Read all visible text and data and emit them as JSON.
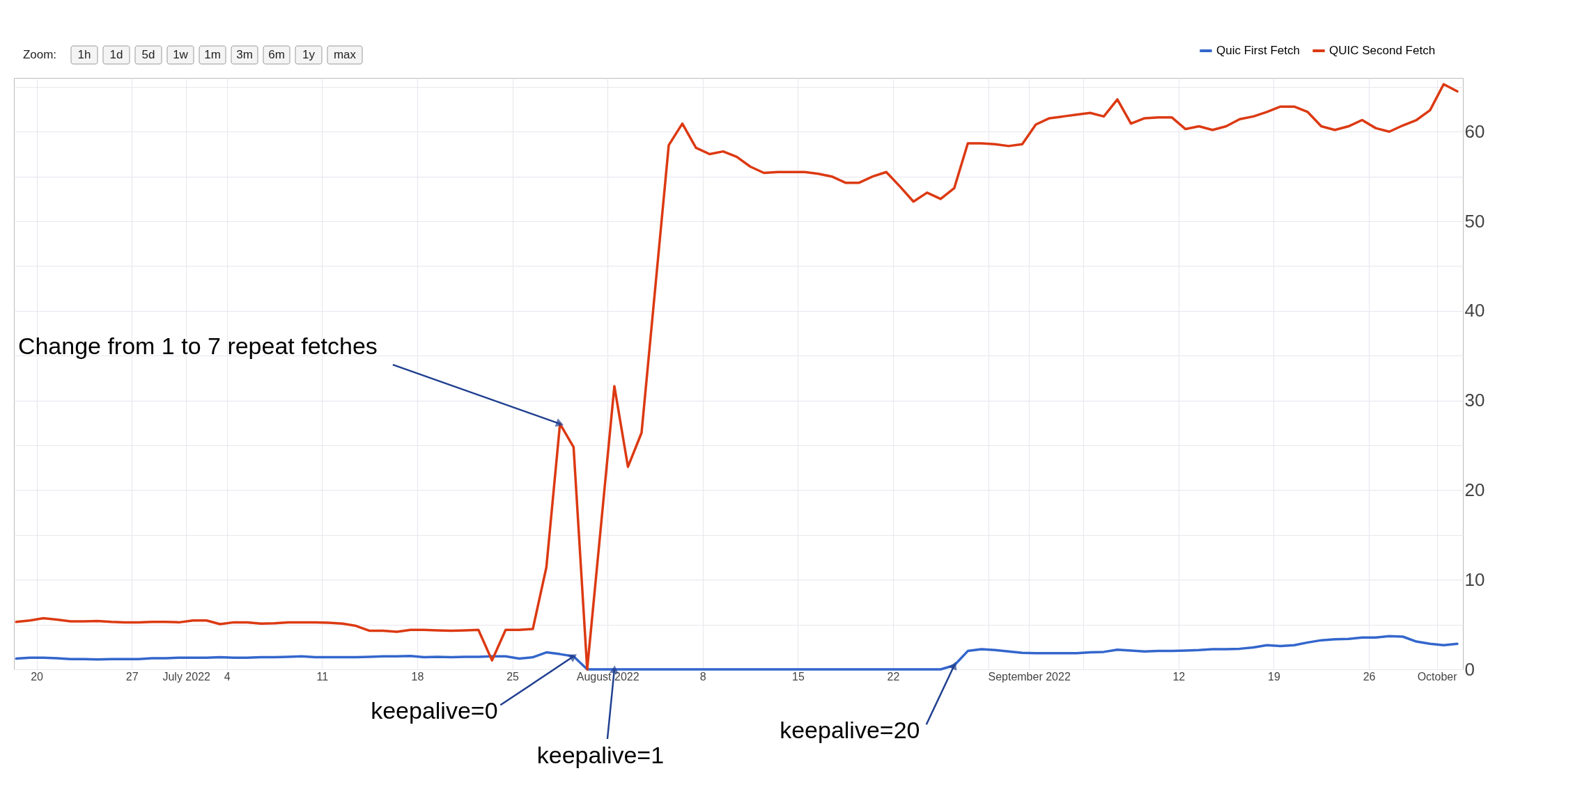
{
  "chart_data": {
    "type": "line",
    "xlim": [
      "2022-06-18T08:00",
      "2022-10-02T22:00"
    ],
    "ylim": [
      0,
      66
    ],
    "xticks": [
      {
        "value": "2022-06-20",
        "label": "20"
      },
      {
        "value": "2022-06-27",
        "label": "27"
      },
      {
        "value": "2022-07-01",
        "label": "July 2022"
      },
      {
        "value": "2022-07-04",
        "label": "4"
      },
      {
        "value": "2022-07-11",
        "label": "11"
      },
      {
        "value": "2022-07-18",
        "label": "18"
      },
      {
        "value": "2022-07-25",
        "label": "25"
      },
      {
        "value": "2022-08-01",
        "label": "August 2022"
      },
      {
        "value": "2022-08-08",
        "label": "8"
      },
      {
        "value": "2022-08-15",
        "label": "15"
      },
      {
        "value": "2022-08-22",
        "label": "22"
      },
      {
        "value": "2022-08-29",
        "label": null
      },
      {
        "value": "2022-09-01",
        "label": "September 2022"
      },
      {
        "value": "2022-09-05",
        "label": null
      },
      {
        "value": "2022-09-12",
        "label": "12"
      },
      {
        "value": "2022-09-19",
        "label": "19"
      },
      {
        "value": "2022-09-26",
        "label": "26"
      },
      {
        "value": "2022-10-01",
        "label": "October"
      }
    ],
    "yticks": [
      0,
      {
        "value": 5,
        "label": null
      },
      10,
      {
        "value": 15,
        "label": null
      },
      20,
      {
        "value": 25,
        "label": null
      },
      30,
      {
        "value": 35,
        "label": null
      },
      40,
      {
        "value": 45,
        "label": null
      },
      50,
      {
        "value": 55,
        "label": null
      },
      60,
      {
        "value": 65,
        "label": null
      }
    ],
    "grid": true,
    "legend": "top right",
    "marker": "none",
    "line_style": "solid",
    "series": [
      {
        "name": "Quic First Fetch",
        "color": "#3366cc",
        "x": [
          "2022-06-18T12:00",
          "2022-06-19T12:00",
          "2022-06-20T12:00",
          "2022-06-21T12:00",
          "2022-06-22T12:00",
          "2022-06-23T12:00",
          "2022-06-24T12:00",
          "2022-06-25T12:00",
          "2022-06-26T12:00",
          "2022-06-27T12:00",
          "2022-06-28T12:00",
          "2022-06-29T12:00",
          "2022-06-30T12:00",
          "2022-07-01T12:00",
          "2022-07-02T12:00",
          "2022-07-03T12:00",
          "2022-07-04T12:00",
          "2022-07-05T12:00",
          "2022-07-06T12:00",
          "2022-07-07T12:00",
          "2022-07-08T12:00",
          "2022-07-09T12:00",
          "2022-07-10T12:00",
          "2022-07-11T12:00",
          "2022-07-12T12:00",
          "2022-07-13T12:00",
          "2022-07-14T12:00",
          "2022-07-15T12:00",
          "2022-07-16T12:00",
          "2022-07-17T12:00",
          "2022-07-18T12:00",
          "2022-07-19T12:00",
          "2022-07-20T12:00",
          "2022-07-21T12:00",
          "2022-07-22T12:00",
          "2022-07-23T12:00",
          "2022-07-24T12:00",
          "2022-07-25T12:00",
          "2022-07-26T12:00",
          "2022-07-27T12:00",
          "2022-07-28T12:00",
          "2022-07-29T12:00",
          "2022-07-30T12:00",
          "2022-08-25T12:00",
          "2022-08-26T12:00",
          "2022-08-27T12:00",
          "2022-08-28T12:00",
          "2022-08-29T12:00",
          "2022-08-30T12:00",
          "2022-08-31T12:00",
          "2022-09-01T12:00",
          "2022-09-02T12:00",
          "2022-09-03T12:00",
          "2022-09-04T12:00",
          "2022-09-05T12:00",
          "2022-09-06T12:00",
          "2022-09-07T12:00",
          "2022-09-08T12:00",
          "2022-09-09T12:00",
          "2022-09-10T12:00",
          "2022-09-11T12:00",
          "2022-09-12T12:00",
          "2022-09-13T12:00",
          "2022-09-14T12:00",
          "2022-09-15T12:00",
          "2022-09-16T12:00",
          "2022-09-17T12:00",
          "2022-09-18T12:00",
          "2022-09-19T12:00",
          "2022-09-20T12:00",
          "2022-09-21T12:00",
          "2022-09-22T12:00",
          "2022-09-23T12:00",
          "2022-09-24T12:00",
          "2022-09-25T12:00",
          "2022-09-26T12:00",
          "2022-09-27T12:00",
          "2022-09-28T12:00",
          "2022-09-29T12:00",
          "2022-09-30T12:00",
          "2022-10-01T12:00",
          "2022-10-02T12:00"
        ],
        "values": [
          1.2,
          1.3,
          1.3,
          1.25,
          1.15,
          1.15,
          1.1,
          1.15,
          1.15,
          1.15,
          1.25,
          1.25,
          1.3,
          1.3,
          1.3,
          1.35,
          1.3,
          1.3,
          1.35,
          1.35,
          1.4,
          1.45,
          1.35,
          1.35,
          1.35,
          1.35,
          1.4,
          1.45,
          1.45,
          1.5,
          1.35,
          1.4,
          1.35,
          1.4,
          1.4,
          1.45,
          1.45,
          1.2,
          1.35,
          1.9,
          1.7,
          1.45,
          0,
          0,
          0.45,
          2.05,
          2.25,
          2.15,
          2.0,
          1.85,
          1.8,
          1.8,
          1.8,
          1.8,
          1.9,
          1.95,
          2.2,
          2.1,
          2.0,
          2.05,
          2.05,
          2.1,
          2.15,
          2.25,
          2.25,
          2.3,
          2.45,
          2.7,
          2.6,
          2.7,
          3.0,
          3.25,
          3.35,
          3.4,
          3.55,
          3.55,
          3.7,
          3.65,
          3.1,
          2.85,
          2.7,
          2.85
        ]
      },
      {
        "name": "QUIC Second Fetch",
        "color": "#dc3912",
        "x": [
          "2022-06-18T12:00",
          "2022-06-19T12:00",
          "2022-06-20T12:00",
          "2022-06-21T12:00",
          "2022-06-22T12:00",
          "2022-06-23T12:00",
          "2022-06-24T12:00",
          "2022-06-25T12:00",
          "2022-06-26T12:00",
          "2022-06-27T12:00",
          "2022-06-28T12:00",
          "2022-06-29T12:00",
          "2022-06-30T12:00",
          "2022-07-01T12:00",
          "2022-07-02T12:00",
          "2022-07-03T12:00",
          "2022-07-04T12:00",
          "2022-07-05T12:00",
          "2022-07-06T12:00",
          "2022-07-07T12:00",
          "2022-07-08T12:00",
          "2022-07-09T12:00",
          "2022-07-10T12:00",
          "2022-07-11T12:00",
          "2022-07-12T12:00",
          "2022-07-13T12:00",
          "2022-07-14T12:00",
          "2022-07-15T12:00",
          "2022-07-16T12:00",
          "2022-07-17T12:00",
          "2022-07-18T12:00",
          "2022-07-19T12:00",
          "2022-07-20T12:00",
          "2022-07-21T12:00",
          "2022-07-22T12:00",
          "2022-07-23T12:00",
          "2022-07-24T12:00",
          "2022-07-25T12:00",
          "2022-07-26T12:00",
          "2022-07-27T12:00",
          "2022-07-28T12:00",
          "2022-07-29T12:00",
          "2022-07-30T12:00",
          "2022-08-01T12:00",
          "2022-08-02T12:00",
          "2022-08-03T12:00",
          "2022-08-05T12:00",
          "2022-08-06T12:00",
          "2022-08-07T12:00",
          "2022-08-08T12:00",
          "2022-08-09T12:00",
          "2022-08-10T12:00",
          "2022-08-11T12:00",
          "2022-08-12T12:00",
          "2022-08-13T12:00",
          "2022-08-14T12:00",
          "2022-08-15T12:00",
          "2022-08-16T12:00",
          "2022-08-17T12:00",
          "2022-08-18T12:00",
          "2022-08-19T12:00",
          "2022-08-20T12:00",
          "2022-08-21T12:00",
          "2022-08-22T12:00",
          "2022-08-23T12:00",
          "2022-08-24T12:00",
          "2022-08-25T12:00",
          "2022-08-26T12:00",
          "2022-08-27T12:00",
          "2022-08-28T12:00",
          "2022-08-29T12:00",
          "2022-08-30T12:00",
          "2022-08-31T12:00",
          "2022-09-01T12:00",
          "2022-09-02T12:00",
          "2022-09-03T12:00",
          "2022-09-04T12:00",
          "2022-09-05T12:00",
          "2022-09-06T12:00",
          "2022-09-07T12:00",
          "2022-09-08T12:00",
          "2022-09-09T12:00",
          "2022-09-10T12:00",
          "2022-09-11T12:00",
          "2022-09-12T12:00",
          "2022-09-13T12:00",
          "2022-09-14T12:00",
          "2022-09-15T12:00",
          "2022-09-16T12:00",
          "2022-09-17T12:00",
          "2022-09-18T12:00",
          "2022-09-19T12:00",
          "2022-09-20T12:00",
          "2022-09-21T12:00",
          "2022-09-22T12:00",
          "2022-09-23T12:00",
          "2022-09-24T12:00",
          "2022-09-25T12:00",
          "2022-09-26T12:00",
          "2022-09-27T12:00",
          "2022-09-28T12:00",
          "2022-09-29T12:00",
          "2022-09-30T12:00",
          "2022-10-01T12:00",
          "2022-10-02T12:00"
        ],
        "values": [
          5.3,
          5.45,
          5.7,
          5.55,
          5.35,
          5.35,
          5.4,
          5.3,
          5.25,
          5.25,
          5.3,
          5.3,
          5.25,
          5.45,
          5.45,
          5.05,
          5.25,
          5.25,
          5.1,
          5.15,
          5.25,
          5.25,
          5.25,
          5.2,
          5.1,
          4.85,
          4.3,
          4.3,
          4.2,
          4.4,
          4.4,
          4.35,
          4.3,
          4.35,
          4.4,
          1.0,
          4.4,
          4.4,
          4.5,
          11.4,
          27.4,
          24.8,
          0,
          31.6,
          22.6,
          26.4,
          58.5,
          60.9,
          58.2,
          57.5,
          57.8,
          57.2,
          56.1,
          55.4,
          55.5,
          55.5,
          55.5,
          55.3,
          55.0,
          54.3,
          54.3,
          55.0,
          55.5,
          53.9,
          52.2,
          53.2,
          52.5,
          53.7,
          58.7,
          58.7,
          58.6,
          58.4,
          58.6,
          60.8,
          61.5,
          61.7,
          61.9,
          62.1,
          61.7,
          63.6,
          60.9,
          61.5,
          61.6,
          61.6,
          60.3,
          60.6,
          60.2,
          60.6,
          61.4,
          61.7,
          62.2,
          62.8,
          62.8,
          62.2,
          60.6,
          60.2,
          60.6,
          61.3,
          60.4,
          60.0,
          60.7,
          61.3,
          62.4,
          65.3,
          64.5
        ]
      }
    ],
    "annotations": [
      "Zoom:",
      "1h",
      "1d",
      "5d",
      "1w",
      "1m",
      "3m",
      "6m",
      "1y",
      "max",
      {
        "text": "Change from 1 to 7 repeat fetches",
        "x": "2022-07-28T12:00",
        "y": 27.4
      },
      {
        "text": "keepalive=0",
        "x": "2022-07-29T12:00",
        "y": 1.45
      },
      {
        "text": "keepalive=1",
        "x": "2022-08-01T12:00",
        "y": 0
      },
      {
        "text": "keepalive=20",
        "x": "2022-08-26T12:00",
        "y": 0.45
      }
    ]
  }
}
